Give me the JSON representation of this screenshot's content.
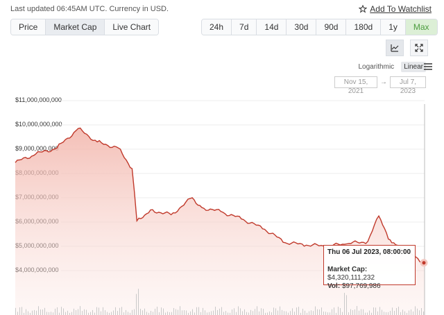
{
  "header": {
    "last_updated": "Last updated 06:45AM UTC. Currency in USD.",
    "watchlist_label": "Add To Watchlist"
  },
  "view_tabs": [
    {
      "label": "Price",
      "active": false
    },
    {
      "label": "Market Cap",
      "active": true
    },
    {
      "label": "Live Chart",
      "active": false
    }
  ],
  "range_tabs": [
    {
      "label": "24h",
      "active": false
    },
    {
      "label": "7d",
      "active": false
    },
    {
      "label": "14d",
      "active": false
    },
    {
      "label": "30d",
      "active": false
    },
    {
      "label": "90d",
      "active": false
    },
    {
      "label": "180d",
      "active": false
    },
    {
      "label": "1y",
      "active": false
    },
    {
      "label": "Max",
      "active": true
    }
  ],
  "scale": {
    "logarithmic": "Logarithmic",
    "linear": "Linear",
    "selected": "Linear"
  },
  "date_range": {
    "from": "Nov 15, 2021",
    "arrow": "→",
    "to": "Jul 7, 2023"
  },
  "colors": {
    "line": "#c0392b",
    "fill": "#f4c7c0",
    "active_green": "#4b9c3d"
  },
  "chart_data": {
    "type": "area",
    "y_ticks": [
      "$11,000,000,000",
      "$10,000,000,000",
      "$9,000,000,000",
      "$8,000,000,000",
      "$7,000,000,000",
      "$6,000,000,000",
      "$5,000,000,000",
      "$4,000,000,000"
    ],
    "ylim": [
      4000000000,
      11000000000
    ],
    "x": [
      "2021-11-15",
      "2021-12-15",
      "2022-01-15",
      "2022-02-15",
      "2022-03-15",
      "2022-04-15",
      "2022-05-05",
      "2022-05-12",
      "2022-06-01",
      "2022-07-01",
      "2022-08-01",
      "2022-08-15",
      "2022-09-15",
      "2022-10-15",
      "2022-11-15",
      "2022-12-15",
      "2023-01-15",
      "2023-02-15",
      "2023-03-15",
      "2023-04-15",
      "2023-05-01",
      "2023-05-15",
      "2023-05-20",
      "2023-06-15",
      "2023-07-06",
      "2023-07-07"
    ],
    "market_cap": [
      8450000000,
      8800000000,
      9050000000,
      9850000000,
      9300000000,
      9050000000,
      8200000000,
      6050000000,
      6500000000,
      6300000000,
      7000000000,
      6600000000,
      6400000000,
      6100000000,
      5700000000,
      5150000000,
      5050000000,
      5000000000,
      5100000000,
      5200000000,
      6250000000,
      5300000000,
      5150000000,
      4700000000,
      4320111232,
      4320000000
    ],
    "tooltip": {
      "date": "Thu 06 Jul 2023, 08:00:00",
      "market_cap_label": "Market Cap:",
      "market_cap_value": "$4,320,111,232",
      "vol_label": "Vol:",
      "vol_value": "$97,769,986"
    }
  }
}
